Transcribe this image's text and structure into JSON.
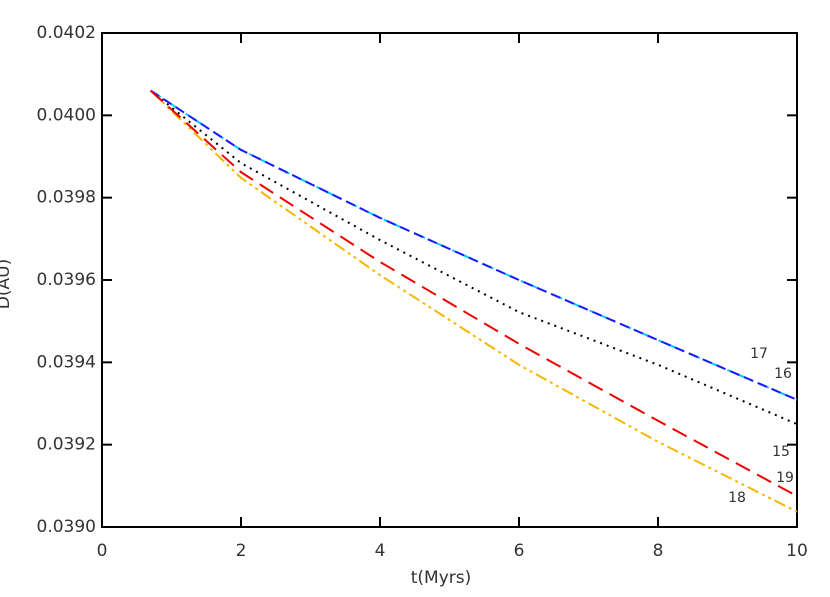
{
  "chart_data": {
    "type": "line",
    "xlabel": "t(Myrs)",
    "ylabel": "D(AU)",
    "xlim": [
      0,
      10
    ],
    "xticks": [
      0,
      2,
      4,
      6,
      8,
      10
    ],
    "ylim": [
      0.039,
      0.0402
    ],
    "yticks": [
      {
        "value": 0.039,
        "label": "0.0390"
      },
      {
        "value": 0.0392,
        "label": "0.0392"
      },
      {
        "value": 0.0394,
        "label": "0.0394"
      },
      {
        "value": 0.0396,
        "label": "0.0396"
      },
      {
        "value": 0.0398,
        "label": "0.0398"
      },
      {
        "value": 0.04,
        "label": "0.0400"
      },
      {
        "value": 0.0402,
        "label": "0.0402"
      }
    ],
    "x": [
      0.7,
      2,
      4,
      6,
      8,
      10
    ],
    "series": [
      {
        "name": "15",
        "color": "#000000",
        "style": "dotted",
        "values": [
          0.04006,
          0.039884,
          0.039697,
          0.039522,
          0.039394,
          0.03925
        ]
      },
      {
        "name": "16",
        "color": "#00ccff",
        "style": "dashdot",
        "values": [
          0.04006,
          0.039916,
          0.039751,
          0.0396,
          0.039454,
          0.039309
        ]
      },
      {
        "name": "17",
        "color": "#1a1aff",
        "style": "dashed",
        "values": [
          0.04006,
          0.039916,
          0.039751,
          0.0396,
          0.039454,
          0.039309
        ]
      },
      {
        "name": "18",
        "color": "#f5b800",
        "style": "dashdotdot",
        "values": [
          0.04006,
          0.039848,
          0.039612,
          0.039394,
          0.039207,
          0.039037
        ]
      },
      {
        "name": "19",
        "color": "#ee0000",
        "style": "longdash",
        "values": [
          0.04006,
          0.039862,
          0.039644,
          0.039445,
          0.039258,
          0.039075
        ]
      }
    ]
  }
}
